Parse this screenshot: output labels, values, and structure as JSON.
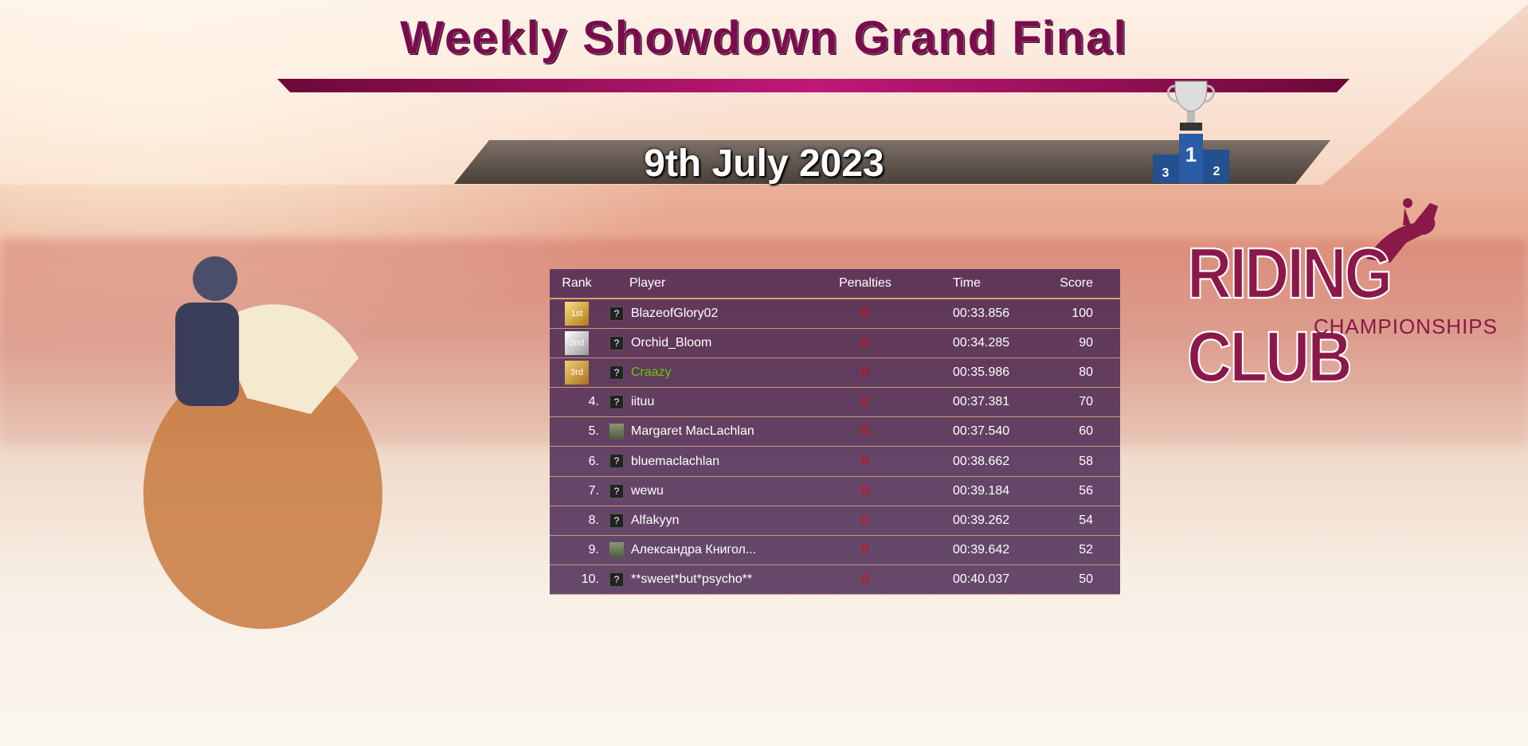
{
  "title": "Weekly Showdown Grand Final",
  "date": "9th July 2023",
  "podium": {
    "first": "1",
    "second": "2",
    "third": "3"
  },
  "logo": {
    "line1": "RIDING CLUB",
    "line2": "CHAMPIONSHIPS"
  },
  "colors": {
    "accent": "#9c1060",
    "penalty": "#e00000",
    "highlight": "#66cc00"
  },
  "table": {
    "headers": {
      "rank": "Rank",
      "player": "Player",
      "penalties": "Penalties",
      "time": "Time",
      "score": "Score"
    },
    "rows": [
      {
        "rank": "1st",
        "medal": "gold",
        "avatar": "question-icon",
        "player": "BlazeofGlory02",
        "penalties": "0",
        "time": "00:33.856",
        "score": "100"
      },
      {
        "rank": "2nd",
        "medal": "silver",
        "avatar": "question-icon",
        "player": "Orchid_Bloom",
        "penalties": "0",
        "time": "00:34.285",
        "score": "90"
      },
      {
        "rank": "3rd",
        "medal": "bronze",
        "avatar": "question-icon",
        "player": "Craazy",
        "penalties": "0",
        "time": "00:35.986",
        "score": "80",
        "highlight": true
      },
      {
        "rank": "4.",
        "avatar": "question-icon",
        "player": "iituu",
        "penalties": "0",
        "time": "00:37.381",
        "score": "70"
      },
      {
        "rank": "5.",
        "avatar": "photo",
        "player": "Margaret MacLachlan",
        "penalties": "0",
        "time": "00:37.540",
        "score": "60"
      },
      {
        "rank": "6.",
        "avatar": "question-icon",
        "player": "bluemaclachlan",
        "penalties": "0",
        "time": "00:38.662",
        "score": "58"
      },
      {
        "rank": "7.",
        "avatar": "question-icon",
        "player": "wewu",
        "penalties": "0",
        "time": "00:39.184",
        "score": "56"
      },
      {
        "rank": "8.",
        "avatar": "question-icon",
        "player": "Alfakyyn",
        "penalties": "0",
        "time": "00:39.262",
        "score": "54"
      },
      {
        "rank": "9.",
        "avatar": "photo",
        "player": "Александра Книгол...",
        "penalties": "0",
        "time": "00:39.642",
        "score": "52"
      },
      {
        "rank": "10.",
        "avatar": "question-icon",
        "player": "**sweet*but*psycho**",
        "penalties": "0",
        "time": "00:40.037",
        "score": "50"
      }
    ]
  }
}
